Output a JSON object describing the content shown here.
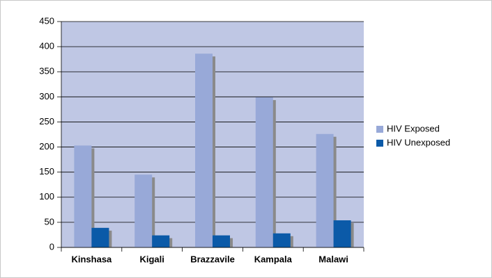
{
  "chart_data": {
    "type": "bar",
    "categories": [
      "Kinshasa",
      "Kigali",
      "Brazzavile",
      "Kampala",
      "Malawi"
    ],
    "series": [
      {
        "name": "HIV Exposed",
        "color": "#98a9d8",
        "values": [
          203,
          145,
          386,
          299,
          226
        ]
      },
      {
        "name": "HIV Unexposed",
        "color": "#0b5aa8",
        "values": [
          39,
          24,
          24,
          28,
          54
        ]
      }
    ],
    "ylim": [
      0,
      450
    ],
    "yticks": [
      0,
      50,
      100,
      150,
      200,
      250,
      300,
      350,
      400,
      450
    ],
    "grid": true,
    "legend": "right",
    "plot_background": "#bfc7e4"
  }
}
